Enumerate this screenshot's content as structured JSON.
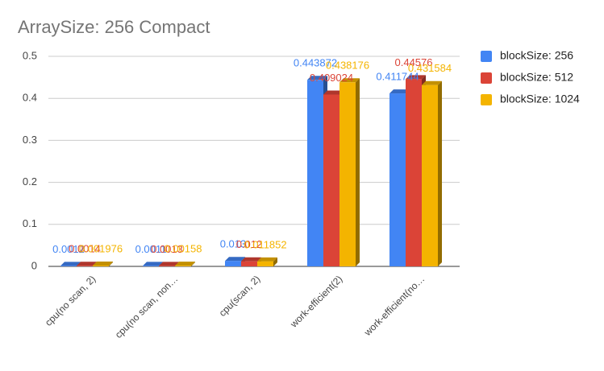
{
  "chart_data": {
    "type": "bar",
    "title": "ArraySize: 256 Compact",
    "categories": [
      "cpu(no scan, 2)",
      "cpu(no scan, non…",
      "cpu(scan, 2)",
      "work-efficient(2)",
      "work-efficient(no…"
    ],
    "series": [
      {
        "name": "blockSize: 256",
        "color": "#4285f4",
        "values": [
          0.0012,
          0.0011,
          0.013,
          0.443872,
          0.411744
        ]
      },
      {
        "name": "blockSize: 512",
        "color": "#db4437",
        "values": [
          0.0014,
          0.0013,
          0.012,
          0.409024,
          0.44576
        ]
      },
      {
        "name": "blockSize: 1024",
        "color": "#f4b400",
        "values": [
          0.001976,
          0.00158,
          0.011852,
          0.438176,
          0.431584
        ]
      }
    ],
    "ylim": [
      0,
      0.5
    ],
    "yticks": [
      0,
      0.1,
      0.2,
      0.3,
      0.4,
      0.5
    ],
    "grid": true,
    "legend": "right"
  }
}
